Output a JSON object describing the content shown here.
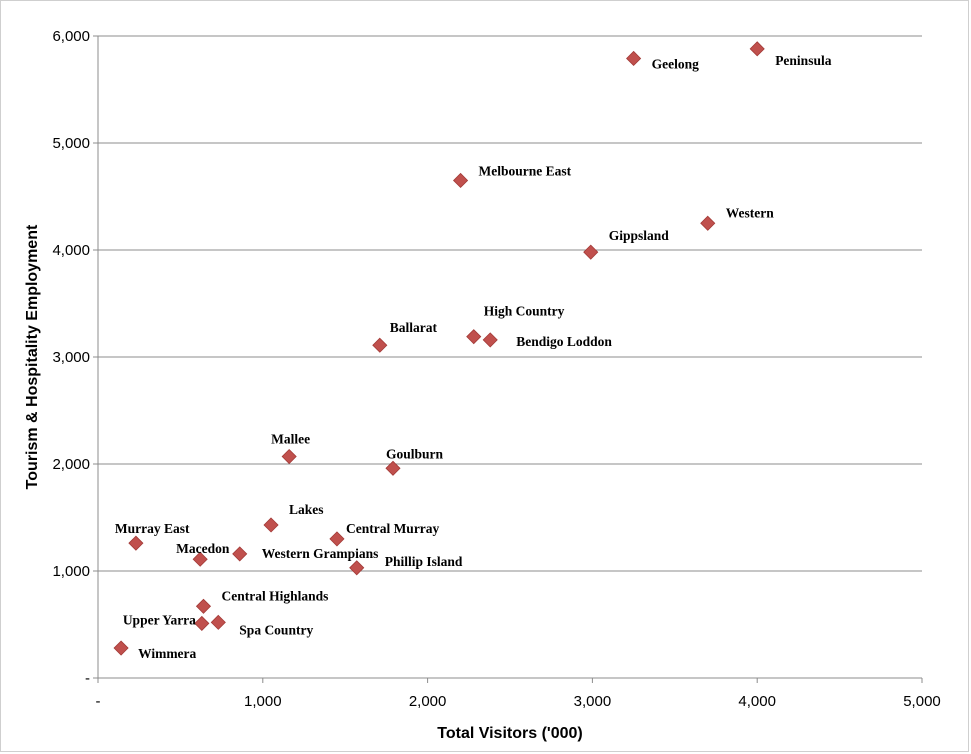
{
  "chart_data": {
    "type": "scatter",
    "title": "",
    "xlabel": "Total Visitors ('000)",
    "ylabel": "Tourism & Hospitality Employment",
    "xlim": [
      0,
      5000
    ],
    "ylim": [
      0,
      6000
    ],
    "x_ticks": [
      0,
      1000,
      2000,
      3000,
      4000,
      5000
    ],
    "x_tick_labels": [
      "-",
      "1,000",
      "2,000",
      "3,000",
      "4,000",
      "5,000"
    ],
    "y_ticks": [
      0,
      1000,
      2000,
      3000,
      4000,
      5000,
      6000
    ],
    "y_tick_labels": [
      "-",
      "1,000",
      "2,000",
      "3,000",
      "4,000",
      "5,000",
      "6,000"
    ],
    "grid": "horizontal",
    "marker_color": "#c0504d",
    "points": [
      {
        "label": "Peninsula",
        "x": 4000,
        "y": 5880
      },
      {
        "label": "Geelong",
        "x": 3250,
        "y": 5790
      },
      {
        "label": "Melbourne East",
        "x": 2200,
        "y": 4650
      },
      {
        "label": "Western",
        "x": 3700,
        "y": 4250
      },
      {
        "label": "Gippsland",
        "x": 2990,
        "y": 3980
      },
      {
        "label": "High Country",
        "x": 2280,
        "y": 3190
      },
      {
        "label": "Bendigo Loddon",
        "x": 2380,
        "y": 3160
      },
      {
        "label": "Ballarat",
        "x": 1710,
        "y": 3110
      },
      {
        "label": "Mallee",
        "x": 1160,
        "y": 2070
      },
      {
        "label": "Goulburn",
        "x": 1790,
        "y": 1960
      },
      {
        "label": "Lakes",
        "x": 1050,
        "y": 1430
      },
      {
        "label": "Central Murray",
        "x": 1450,
        "y": 1300
      },
      {
        "label": "Murray East",
        "x": 230,
        "y": 1260
      },
      {
        "label": "Western Grampians",
        "x": 860,
        "y": 1160
      },
      {
        "label": "Macedon",
        "x": 620,
        "y": 1110
      },
      {
        "label": "Phillip Island",
        "x": 1570,
        "y": 1030
      },
      {
        "label": "Central Highlands",
        "x": 640,
        "y": 670
      },
      {
        "label": "Upper Yarra",
        "x": 630,
        "y": 510
      },
      {
        "label": "Spa Country",
        "x": 730,
        "y": 520
      },
      {
        "label": "Wimmera",
        "x": 140,
        "y": 280
      }
    ]
  }
}
